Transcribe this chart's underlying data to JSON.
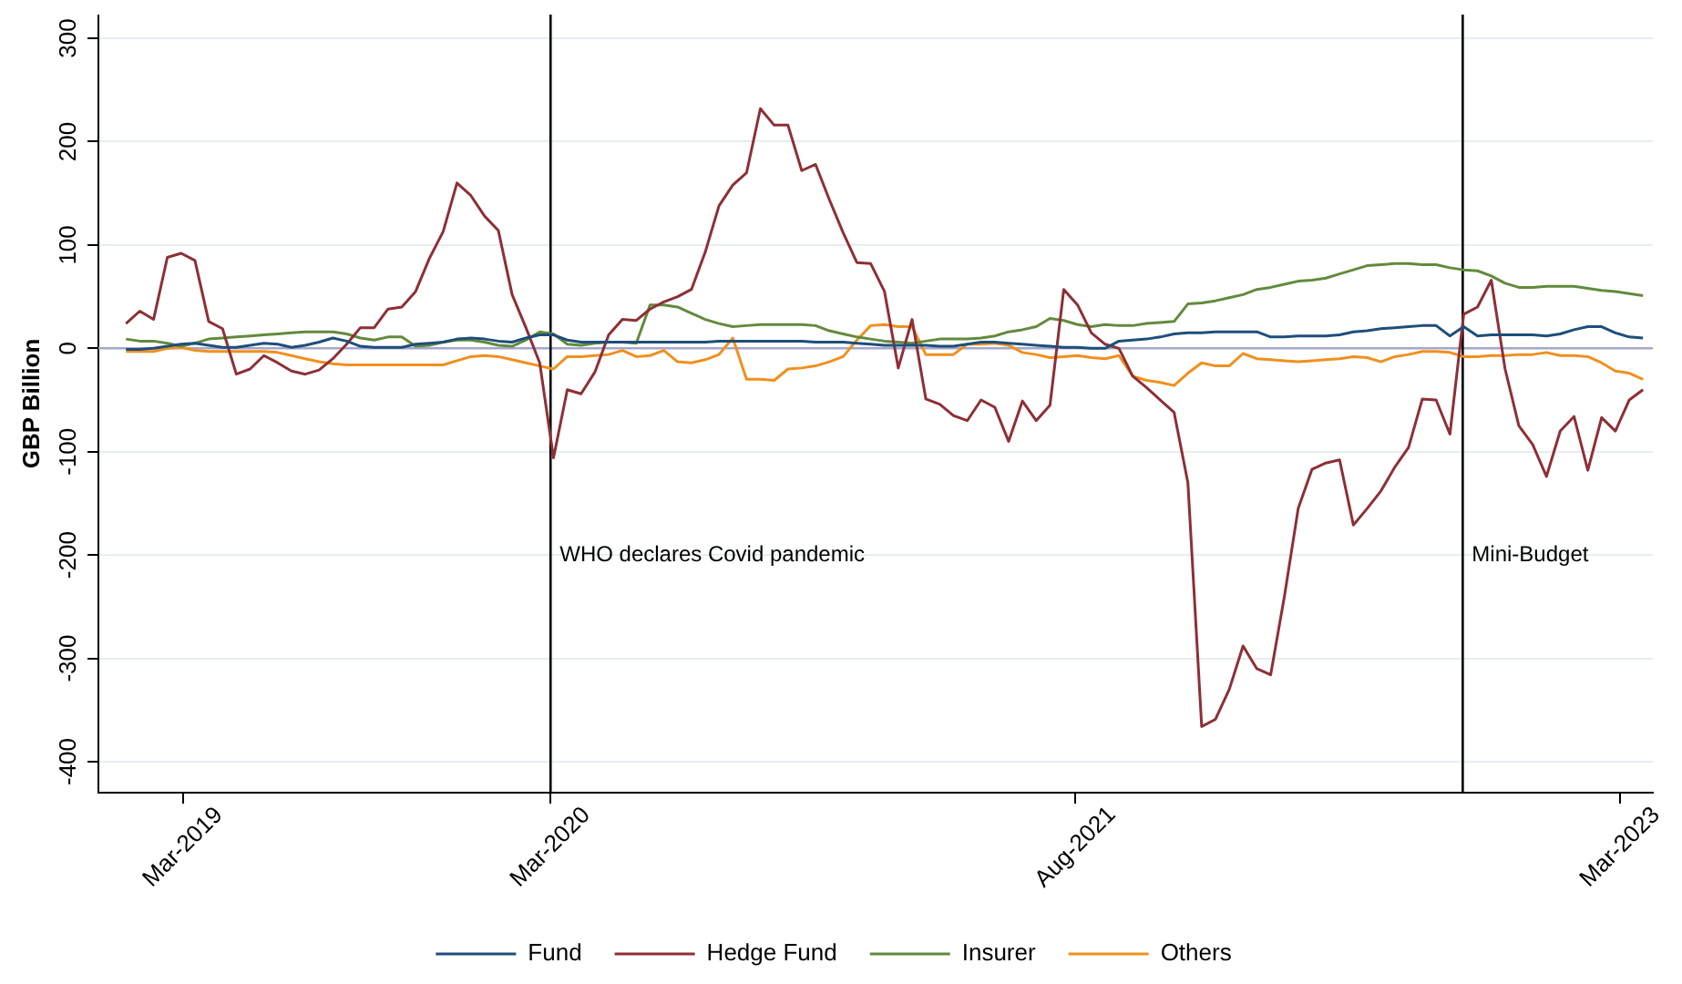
{
  "chart_data": {
    "type": "line",
    "ylabel": "GBP Billion",
    "x": [
      "2019-01-05",
      "2019-01-19",
      "2019-02-02",
      "2019-02-16",
      "2019-03-02",
      "2019-03-16",
      "2019-03-30",
      "2019-04-13",
      "2019-04-27",
      "2019-05-11",
      "2019-05-25",
      "2019-06-08",
      "2019-06-22",
      "2019-07-06",
      "2019-07-20",
      "2019-08-03",
      "2019-08-17",
      "2019-08-31",
      "2019-09-14",
      "2019-09-28",
      "2019-10-12",
      "2019-10-26",
      "2019-11-09",
      "2019-11-23",
      "2019-12-07",
      "2019-12-21",
      "2020-01-04",
      "2020-01-18",
      "2020-02-01",
      "2020-02-15",
      "2020-02-29",
      "2020-03-14",
      "2020-03-28",
      "2020-04-11",
      "2020-04-25",
      "2020-05-09",
      "2020-05-23",
      "2020-06-06",
      "2020-06-20",
      "2020-07-04",
      "2020-07-18",
      "2020-08-01",
      "2020-08-15",
      "2020-08-29",
      "2020-09-12",
      "2020-09-26",
      "2020-10-10",
      "2020-10-24",
      "2020-11-07",
      "2020-11-21",
      "2020-12-05",
      "2020-12-19",
      "2021-01-02",
      "2021-01-16",
      "2021-01-30",
      "2021-02-13",
      "2021-02-27",
      "2021-03-13",
      "2021-03-27",
      "2021-04-10",
      "2021-04-24",
      "2021-05-08",
      "2021-05-22",
      "2021-06-05",
      "2021-06-19",
      "2021-07-03",
      "2021-07-17",
      "2021-07-31",
      "2021-08-14",
      "2021-08-28",
      "2021-09-11",
      "2021-09-25",
      "2021-10-09",
      "2021-10-23",
      "2021-11-06",
      "2021-11-20",
      "2021-12-04",
      "2021-12-18",
      "2022-01-01",
      "2022-01-15",
      "2022-01-29",
      "2022-02-12",
      "2022-02-26",
      "2022-03-12",
      "2022-03-26",
      "2022-04-09",
      "2022-04-23",
      "2022-05-07",
      "2022-05-21",
      "2022-06-04",
      "2022-06-18",
      "2022-07-02",
      "2022-07-16",
      "2022-07-30",
      "2022-08-13",
      "2022-08-27",
      "2022-09-10",
      "2022-09-24",
      "2022-10-08",
      "2022-10-22",
      "2022-11-05",
      "2022-11-19",
      "2022-12-03",
      "2022-12-17",
      "2022-12-31",
      "2023-01-14",
      "2023-01-28",
      "2023-02-11",
      "2023-02-25",
      "2023-03-11",
      "2023-03-25"
    ],
    "series": [
      {
        "name": "Fund",
        "color": "#1f4e79",
        "values": [
          -1,
          -1,
          0,
          2,
          4,
          5,
          3,
          1,
          1,
          3,
          5,
          4,
          1,
          3,
          6,
          10,
          7,
          2,
          1,
          1,
          1,
          4,
          5,
          6,
          9,
          10,
          9,
          7,
          6,
          10,
          13,
          13,
          8,
          6,
          6,
          6,
          6,
          6,
          6,
          6,
          6,
          6,
          6,
          7,
          7,
          7,
          7,
          7,
          7,
          7,
          6,
          6,
          6,
          5,
          4,
          3,
          3,
          3,
          3,
          2,
          2,
          4,
          6,
          6,
          5,
          4,
          3,
          2,
          1,
          1,
          0,
          0,
          7,
          8,
          9,
          11,
          14,
          15,
          15,
          16,
          16,
          16,
          16,
          11,
          11,
          12,
          12,
          12,
          13,
          16,
          17,
          19,
          20,
          21,
          22,
          22,
          12,
          21,
          12,
          13,
          13,
          13,
          13,
          12,
          14,
          18,
          21,
          21,
          15,
          11,
          10
        ]
      },
      {
        "name": "Hedge Fund",
        "color": "#8e2f36",
        "values": [
          24,
          36,
          28,
          88,
          92,
          85,
          26,
          19,
          -25,
          -20,
          -7,
          -14,
          -22,
          -25,
          -21,
          -10,
          4,
          20,
          20,
          38,
          40,
          55,
          87,
          113,
          160,
          148,
          128,
          114,
          52,
          20,
          -14,
          -106,
          -40,
          -44,
          -23,
          13,
          28,
          27,
          38,
          45,
          50,
          57,
          93,
          138,
          158,
          170,
          232,
          216,
          216,
          172,
          178,
          144,
          112,
          83,
          82,
          55,
          -19,
          28,
          -49,
          -54,
          -65,
          -70,
          -50,
          -57,
          -90,
          -51,
          -70,
          -55,
          57,
          42,
          15,
          4,
          0,
          -27,
          -38,
          -50,
          -62,
          -130,
          -366,
          -359,
          -330,
          -288,
          -310,
          -316,
          -240,
          -155,
          -117,
          -111,
          -108,
          -171,
          -155,
          -138,
          -115,
          -96,
          -49,
          -50,
          -83,
          33,
          40,
          66,
          -20,
          -75,
          -93,
          -124,
          -80,
          -66,
          -118,
          -67,
          -80,
          -50,
          -40
        ]
      },
      {
        "name": "Insurer",
        "color": "#628a3c",
        "values": [
          9,
          7,
          7,
          5,
          2,
          5,
          9,
          10,
          11,
          12,
          13,
          14,
          15,
          16,
          16,
          16,
          14,
          10,
          8,
          11,
          11,
          2,
          3,
          6,
          8,
          8,
          6,
          3,
          2,
          8,
          16,
          14,
          4,
          3,
          5,
          6,
          6,
          5,
          42,
          42,
          40,
          34,
          28,
          24,
          21,
          22,
          23,
          23,
          23,
          23,
          22,
          17,
          14,
          11,
          9,
          7,
          6,
          5,
          7,
          9,
          9,
          9,
          10,
          12,
          16,
          18,
          21,
          29,
          27,
          23,
          21,
          23,
          22,
          22,
          24,
          25,
          26,
          43,
          44,
          46,
          49,
          52,
          57,
          59,
          62,
          65,
          66,
          68,
          72,
          76,
          80,
          81,
          82,
          82,
          81,
          81,
          78,
          76,
          75,
          70,
          63,
          59,
          59,
          60,
          60,
          60,
          58,
          56,
          55,
          53,
          51
        ]
      },
      {
        "name": "Others",
        "color": "#f0901e",
        "values": [
          -3,
          -3,
          -3,
          0,
          1,
          -2,
          -3,
          -3,
          -3,
          -3,
          -3,
          -4,
          -7,
          -10,
          -13,
          -15,
          -16,
          -16,
          -16,
          -16,
          -16,
          -16,
          -16,
          -16,
          -12,
          -8,
          -7,
          -8,
          -11,
          -14,
          -17,
          -20,
          -8,
          -8,
          -7,
          -6,
          -2,
          -8,
          -7,
          -2,
          -13,
          -14,
          -11,
          -6,
          10,
          -30,
          -30,
          -31,
          -20,
          -19,
          -17,
          -13,
          -8,
          8,
          22,
          23,
          21,
          21,
          -6,
          -6,
          -6,
          4,
          4,
          5,
          3,
          -4,
          -6,
          -9,
          -8,
          -7,
          -9,
          -10,
          -7,
          -27,
          -31,
          -33,
          -36,
          -24,
          -14,
          -17,
          -17,
          -5,
          -10,
          -11,
          -12,
          -13,
          -12,
          -11,
          -10,
          -8,
          -9,
          -13,
          -8,
          -6,
          -3,
          -3,
          -4,
          -8,
          -8,
          -7,
          -7,
          -6,
          -6,
          -4,
          -7,
          -7,
          -8,
          -14,
          -22,
          -24,
          -30
        ]
      }
    ],
    "xlim": [
      "2018-12-08",
      "2023-04-04"
    ],
    "xticks": [
      {
        "value": "2019-03-04",
        "label": "Mar-2019"
      },
      {
        "value": "2020-03-11",
        "label": "Mar-2020"
      },
      {
        "value": "2021-08-26",
        "label": "Aug-2021"
      },
      {
        "value": "2023-03-02",
        "label": "Mar-2023"
      }
    ],
    "ylim": [
      -430,
      323
    ],
    "yticks": [
      -400,
      -300,
      -200,
      -100,
      0,
      100,
      200,
      300
    ],
    "ref_lines": [
      {
        "axis": "y",
        "value": 0,
        "color": "#a4a8cc"
      },
      {
        "axis": "x",
        "value": "2020-03-11",
        "label": "WHO declares Covid pandemic",
        "color": "#000000"
      },
      {
        "axis": "x",
        "value": "2022-09-23",
        "label": "Mini-Budget",
        "color": "#000000"
      }
    ],
    "grid": "y",
    "legend": "bottom",
    "marker": "none",
    "line_style": "solid"
  }
}
